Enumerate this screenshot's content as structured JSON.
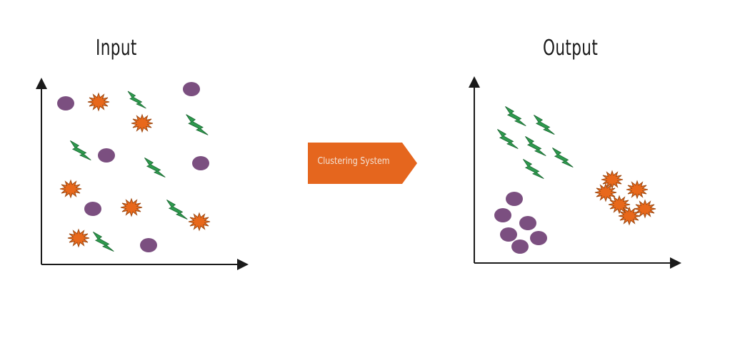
{
  "panels": {
    "input": {
      "title": "Input"
    },
    "output": {
      "title": "Output"
    }
  },
  "process": {
    "label": "Clustering System"
  },
  "colors": {
    "circle": "#7b4f80",
    "star": "#e8681b",
    "star_edge": "#a04a12",
    "bolt": "#2e9a4e",
    "bolt_edge": "#1e6b35",
    "arrow": "#e5661e",
    "axis": "#1a1a1a"
  },
  "icons": {
    "circle": "purple-circle-icon",
    "star": "orange-starburst-icon",
    "bolt": "green-lightning-icon"
  }
}
